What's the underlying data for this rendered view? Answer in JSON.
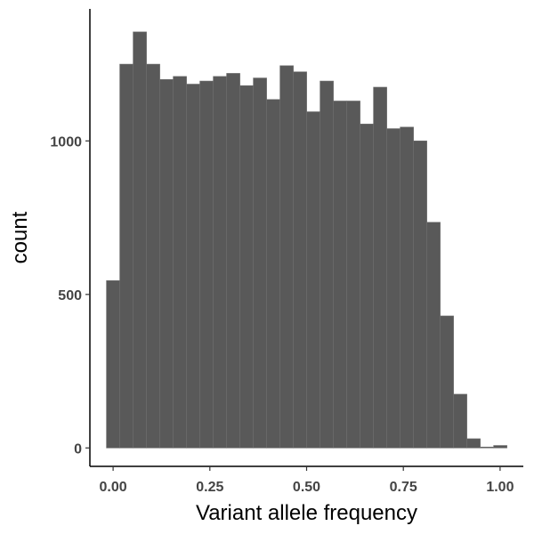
{
  "chart_data": {
    "type": "bar",
    "histogram": true,
    "xlabel": "Variant allele frequency",
    "ylabel": "count",
    "xlim": [
      -0.06,
      1.06
    ],
    "ylim": [
      -60,
      1430
    ],
    "x_ticks": [
      0.0,
      0.25,
      0.5,
      0.75,
      1.0
    ],
    "x_tick_labels": [
      "0.00",
      "0.25",
      "0.50",
      "0.75",
      "1.00"
    ],
    "y_ticks": [
      0,
      500,
      1000
    ],
    "y_tick_labels": [
      "0",
      "500",
      "1000"
    ],
    "grid": false,
    "legend": "none",
    "bar_color": "#595959",
    "bar_edge_color": "#6e6e6e",
    "bin_width": 0.0345,
    "bin_centers": [
      0.0,
      0.0345,
      0.069,
      0.1035,
      0.138,
      0.1725,
      0.207,
      0.2415,
      0.276,
      0.3105,
      0.345,
      0.3795,
      0.414,
      0.4485,
      0.483,
      0.5175,
      0.552,
      0.5865,
      0.621,
      0.6555,
      0.69,
      0.7245,
      0.759,
      0.7935,
      0.828,
      0.8625,
      0.897,
      0.9315,
      0.966,
      1.0005
    ],
    "values": [
      545,
      1250,
      1355,
      1250,
      1200,
      1210,
      1185,
      1195,
      1210,
      1220,
      1180,
      1205,
      1135,
      1245,
      1225,
      1095,
      1195,
      1130,
      1130,
      1055,
      1175,
      1040,
      1045,
      1000,
      735,
      430,
      175,
      30,
      3,
      8
    ]
  }
}
